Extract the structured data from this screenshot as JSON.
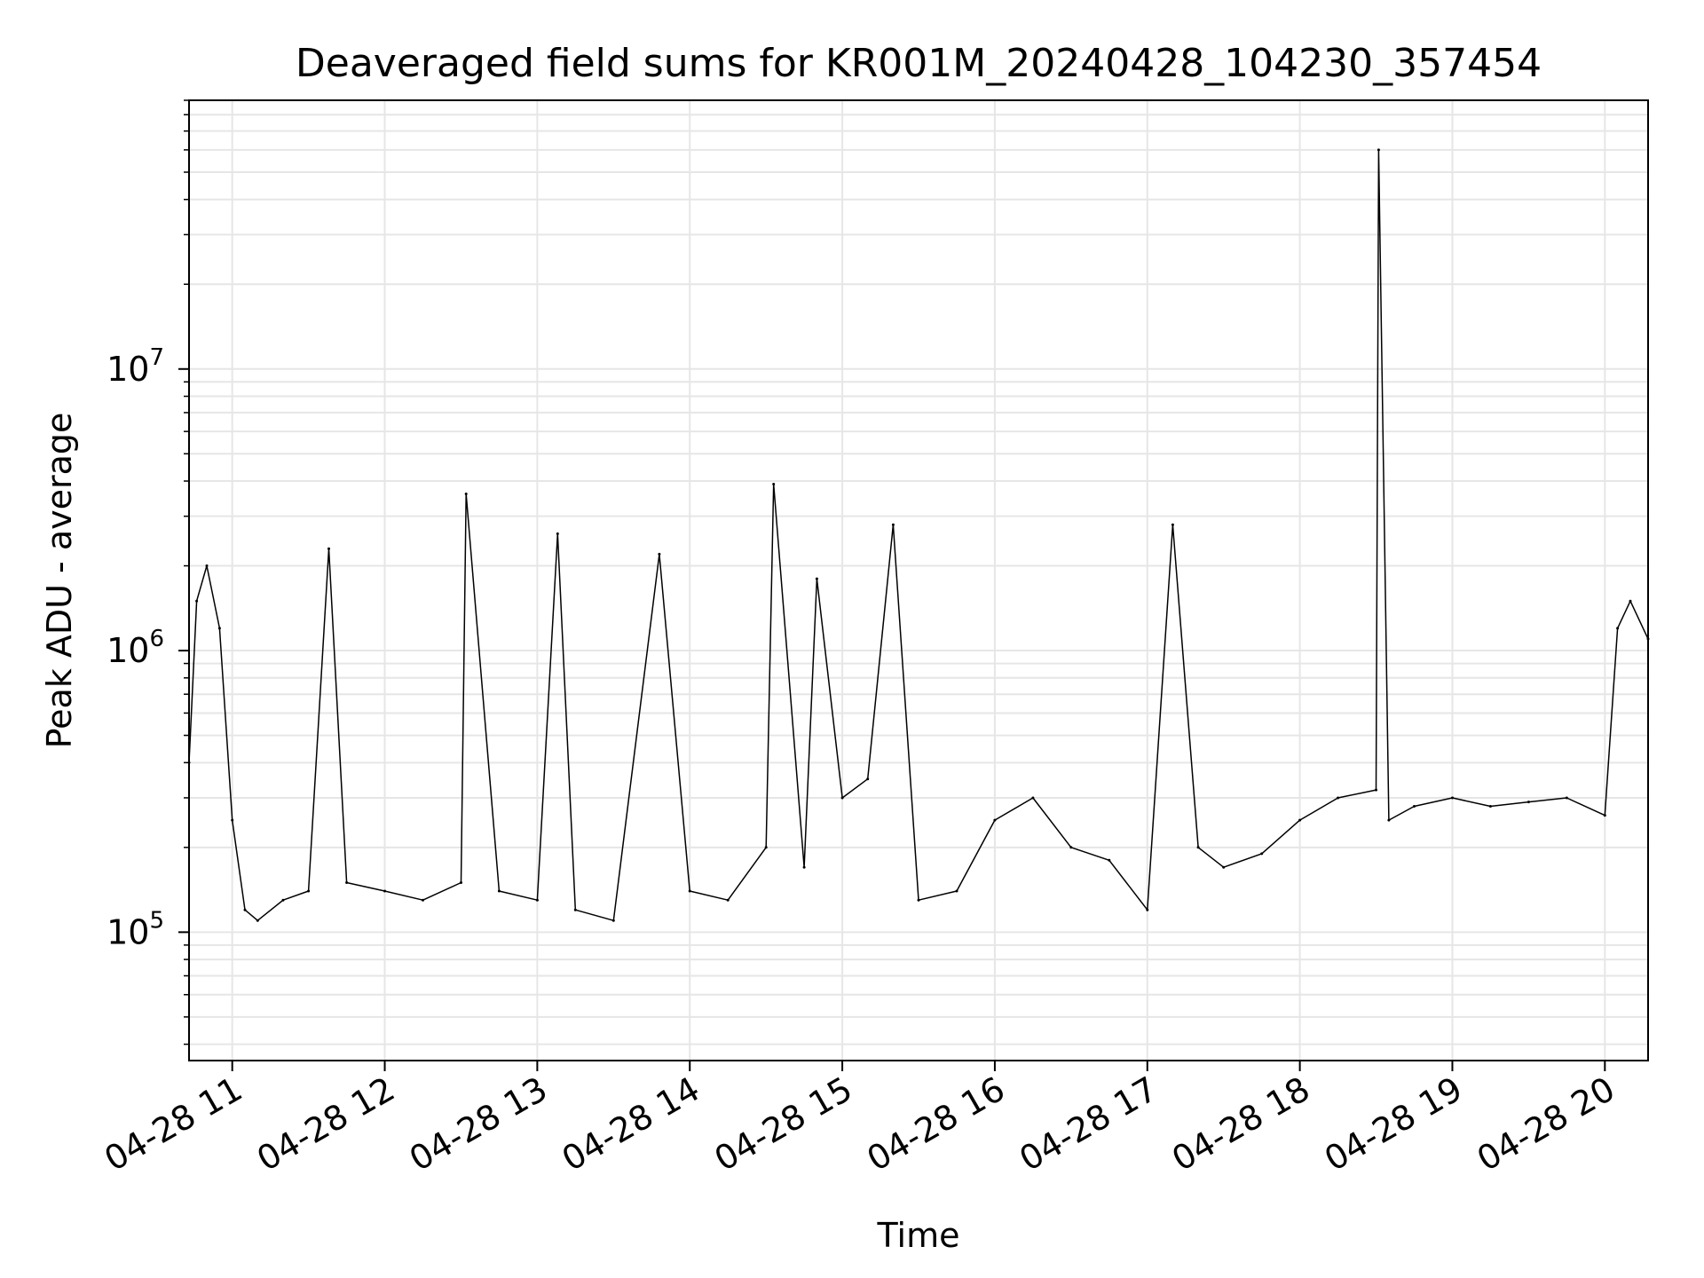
{
  "chart_data": {
    "type": "line",
    "title": "Deaveraged field sums for KR001M_20240428_104230_357454",
    "xlabel": "Time",
    "ylabel": "Peak ADU - average",
    "yscale": "log",
    "xlim": [
      "2024-04-28 10:43",
      "2024-04-28 20:17"
    ],
    "ylim": [
      35000,
      90000000
    ],
    "grid": true,
    "x_ticks": [
      "04-28 11",
      "04-28 12",
      "04-28 13",
      "04-28 14",
      "04-28 15",
      "04-28 16",
      "04-28 17",
      "04-28 18",
      "04-28 19",
      "04-28 20"
    ],
    "y_ticks": [
      {
        "base": "10",
        "exp": "5"
      },
      {
        "base": "10",
        "exp": "6"
      },
      {
        "base": "10",
        "exp": "7"
      }
    ],
    "series": [
      {
        "color": "#000000",
        "x": [
          "2024-04-28 10:43",
          "2024-04-28 10:46",
          "2024-04-28 10:50",
          "2024-04-28 10:55",
          "2024-04-28 11:00",
          "2024-04-28 11:05",
          "2024-04-28 11:10",
          "2024-04-28 11:20",
          "2024-04-28 11:30",
          "2024-04-28 11:38",
          "2024-04-28 11:45",
          "2024-04-28 12:00",
          "2024-04-28 12:15",
          "2024-04-28 12:30",
          "2024-04-28 12:32",
          "2024-04-28 12:45",
          "2024-04-28 13:00",
          "2024-04-28 13:08",
          "2024-04-28 13:15",
          "2024-04-28 13:30",
          "2024-04-28 13:48",
          "2024-04-28 14:00",
          "2024-04-28 14:15",
          "2024-04-28 14:30",
          "2024-04-28 14:33",
          "2024-04-28 14:45",
          "2024-04-28 14:50",
          "2024-04-28 15:00",
          "2024-04-28 15:10",
          "2024-04-28 15:20",
          "2024-04-28 15:30",
          "2024-04-28 15:45",
          "2024-04-28 16:00",
          "2024-04-28 16:15",
          "2024-04-28 16:30",
          "2024-04-28 16:45",
          "2024-04-28 17:00",
          "2024-04-28 17:10",
          "2024-04-28 17:20",
          "2024-04-28 17:30",
          "2024-04-28 17:45",
          "2024-04-28 18:00",
          "2024-04-28 18:15",
          "2024-04-28 18:30",
          "2024-04-28 18:31",
          "2024-04-28 18:35",
          "2024-04-28 18:45",
          "2024-04-28 19:00",
          "2024-04-28 19:15",
          "2024-04-28 19:30",
          "2024-04-28 19:45",
          "2024-04-28 20:00",
          "2024-04-28 20:05",
          "2024-04-28 20:10",
          "2024-04-28 20:17"
        ],
        "y": [
          400000,
          1500000,
          2000000,
          1200000,
          250000,
          120000,
          110000,
          130000,
          140000,
          2300000,
          150000,
          140000,
          130000,
          150000,
          3600000,
          140000,
          130000,
          2600000,
          120000,
          110000,
          2200000,
          140000,
          130000,
          200000,
          3900000,
          170000,
          1800000,
          300000,
          350000,
          2800000,
          130000,
          140000,
          250000,
          300000,
          200000,
          180000,
          120000,
          2800000,
          200000,
          170000,
          190000,
          250000,
          300000,
          320000,
          60000000,
          250000,
          280000,
          300000,
          280000,
          290000,
          300000,
          260000,
          1200000,
          1500000,
          1100000
        ]
      }
    ]
  }
}
